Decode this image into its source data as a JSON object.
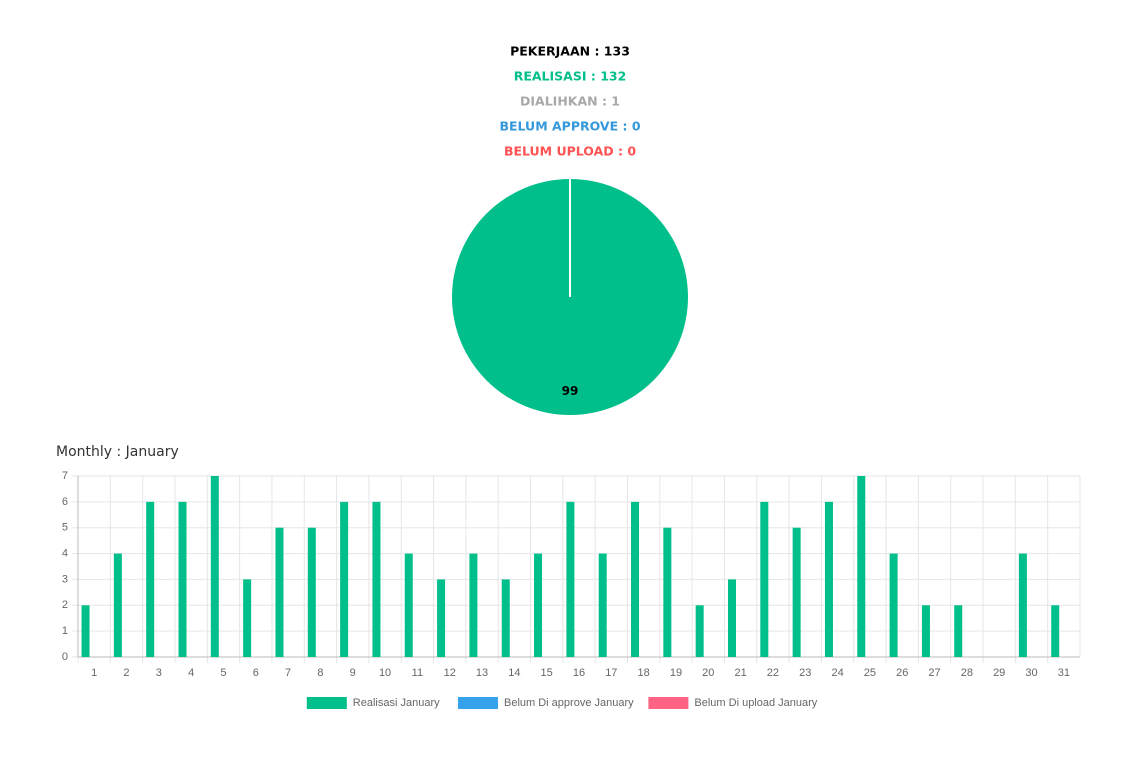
{
  "summary": [
    {
      "text": "PEKERJAAN : 133",
      "color": "#000000"
    },
    {
      "text": "REALISASI : 132",
      "color": "#00bf8a"
    },
    {
      "text": "DIALIHKAN : 1",
      "color": "#a8a8a8"
    },
    {
      "text": "BELUM APPROVE : 0",
      "color": "#3498db"
    },
    {
      "text": "BELUM UPLOAD : 0",
      "color": "#ff5252"
    }
  ],
  "chart_data": [
    {
      "type": "pie",
      "values": [
        99
      ],
      "colors": [
        "#00bf8a"
      ]
    },
    {
      "type": "bar",
      "title": "Monthly : January",
      "categories": [
        "1",
        "2",
        "3",
        "4",
        "5",
        "6",
        "7",
        "8",
        "9",
        "10",
        "11",
        "12",
        "13",
        "14",
        "15",
        "16",
        "17",
        "18",
        "19",
        "20",
        "21",
        "22",
        "23",
        "24",
        "25",
        "26",
        "27",
        "28",
        "29",
        "30",
        "31"
      ],
      "series": [
        {
          "name": "Realisasi January",
          "color": "#00bf8a",
          "values": [
            2,
            4,
            6,
            6,
            7,
            3,
            5,
            5,
            6,
            6,
            4,
            3,
            4,
            3,
            4,
            6,
            4,
            6,
            5,
            2,
            3,
            6,
            5,
            6,
            7,
            4,
            2,
            2,
            0,
            4,
            2
          ]
        },
        {
          "name": "Belum Di approve January",
          "color": "#36a2eb",
          "values": [
            0,
            0,
            0,
            0,
            0,
            0,
            0,
            0,
            0,
            0,
            0,
            0,
            0,
            0,
            0,
            0,
            0,
            0,
            0,
            0,
            0,
            0,
            0,
            0,
            0,
            0,
            0,
            0,
            0,
            0,
            0
          ]
        },
        {
          "name": "Belum Di upload January",
          "color": "#ff6384",
          "values": [
            0,
            0,
            0,
            0,
            0,
            0,
            0,
            0,
            0,
            0,
            0,
            0,
            0,
            0,
            0,
            0,
            0,
            0,
            0,
            0,
            0,
            0,
            0,
            0,
            0,
            0,
            0,
            0,
            0,
            0,
            0
          ]
        }
      ],
      "ylim": [
        0,
        7
      ],
      "yticks": [
        0,
        1,
        2,
        3,
        4,
        5,
        6,
        7
      ],
      "grid": true
    }
  ]
}
